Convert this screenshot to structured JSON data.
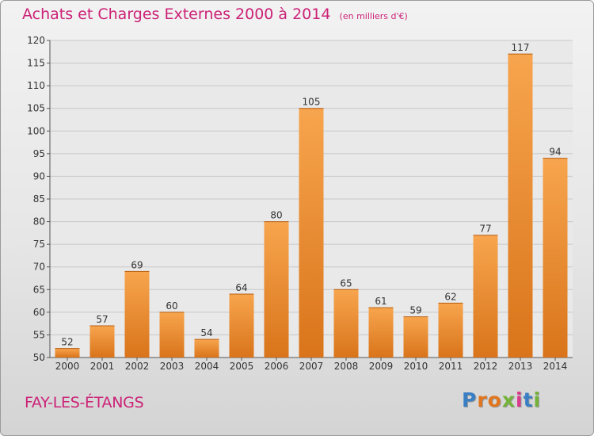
{
  "header": {
    "title": "Achats et Charges Externes 2000 à 2014",
    "unit": "(en milliers d'€)"
  },
  "footer": {
    "commune": "FAY-LES-ÉTANGS",
    "brand": "Proxiti"
  },
  "colors": {
    "title": "#cc2277",
    "bar_light": "#f7a54e",
    "bar_dark": "#d9741a",
    "brand_letters": [
      "#3a7fc4",
      "#e0761e",
      "#e0761e",
      "#74b23a",
      "#d93a8a",
      "#3a7fc4",
      "#74b23a"
    ]
  },
  "chart_data": {
    "type": "bar",
    "title": "Achats et Charges Externes 2000 à 2014",
    "subtitle": "(en milliers d'€)",
    "xlabel": "",
    "ylabel": "",
    "categories": [
      "2000",
      "2001",
      "2002",
      "2003",
      "2004",
      "2005",
      "2006",
      "2007",
      "2008",
      "2009",
      "2010",
      "2011",
      "2012",
      "2013",
      "2014"
    ],
    "values": [
      52,
      57,
      69,
      60,
      54,
      64,
      80,
      105,
      65,
      61,
      59,
      62,
      77,
      117,
      94
    ],
    "ylim": [
      50,
      120
    ],
    "yticks": [
      50,
      55,
      60,
      65,
      70,
      75,
      80,
      85,
      90,
      95,
      100,
      105,
      110,
      115,
      120
    ],
    "grid": true,
    "legend": "none"
  }
}
